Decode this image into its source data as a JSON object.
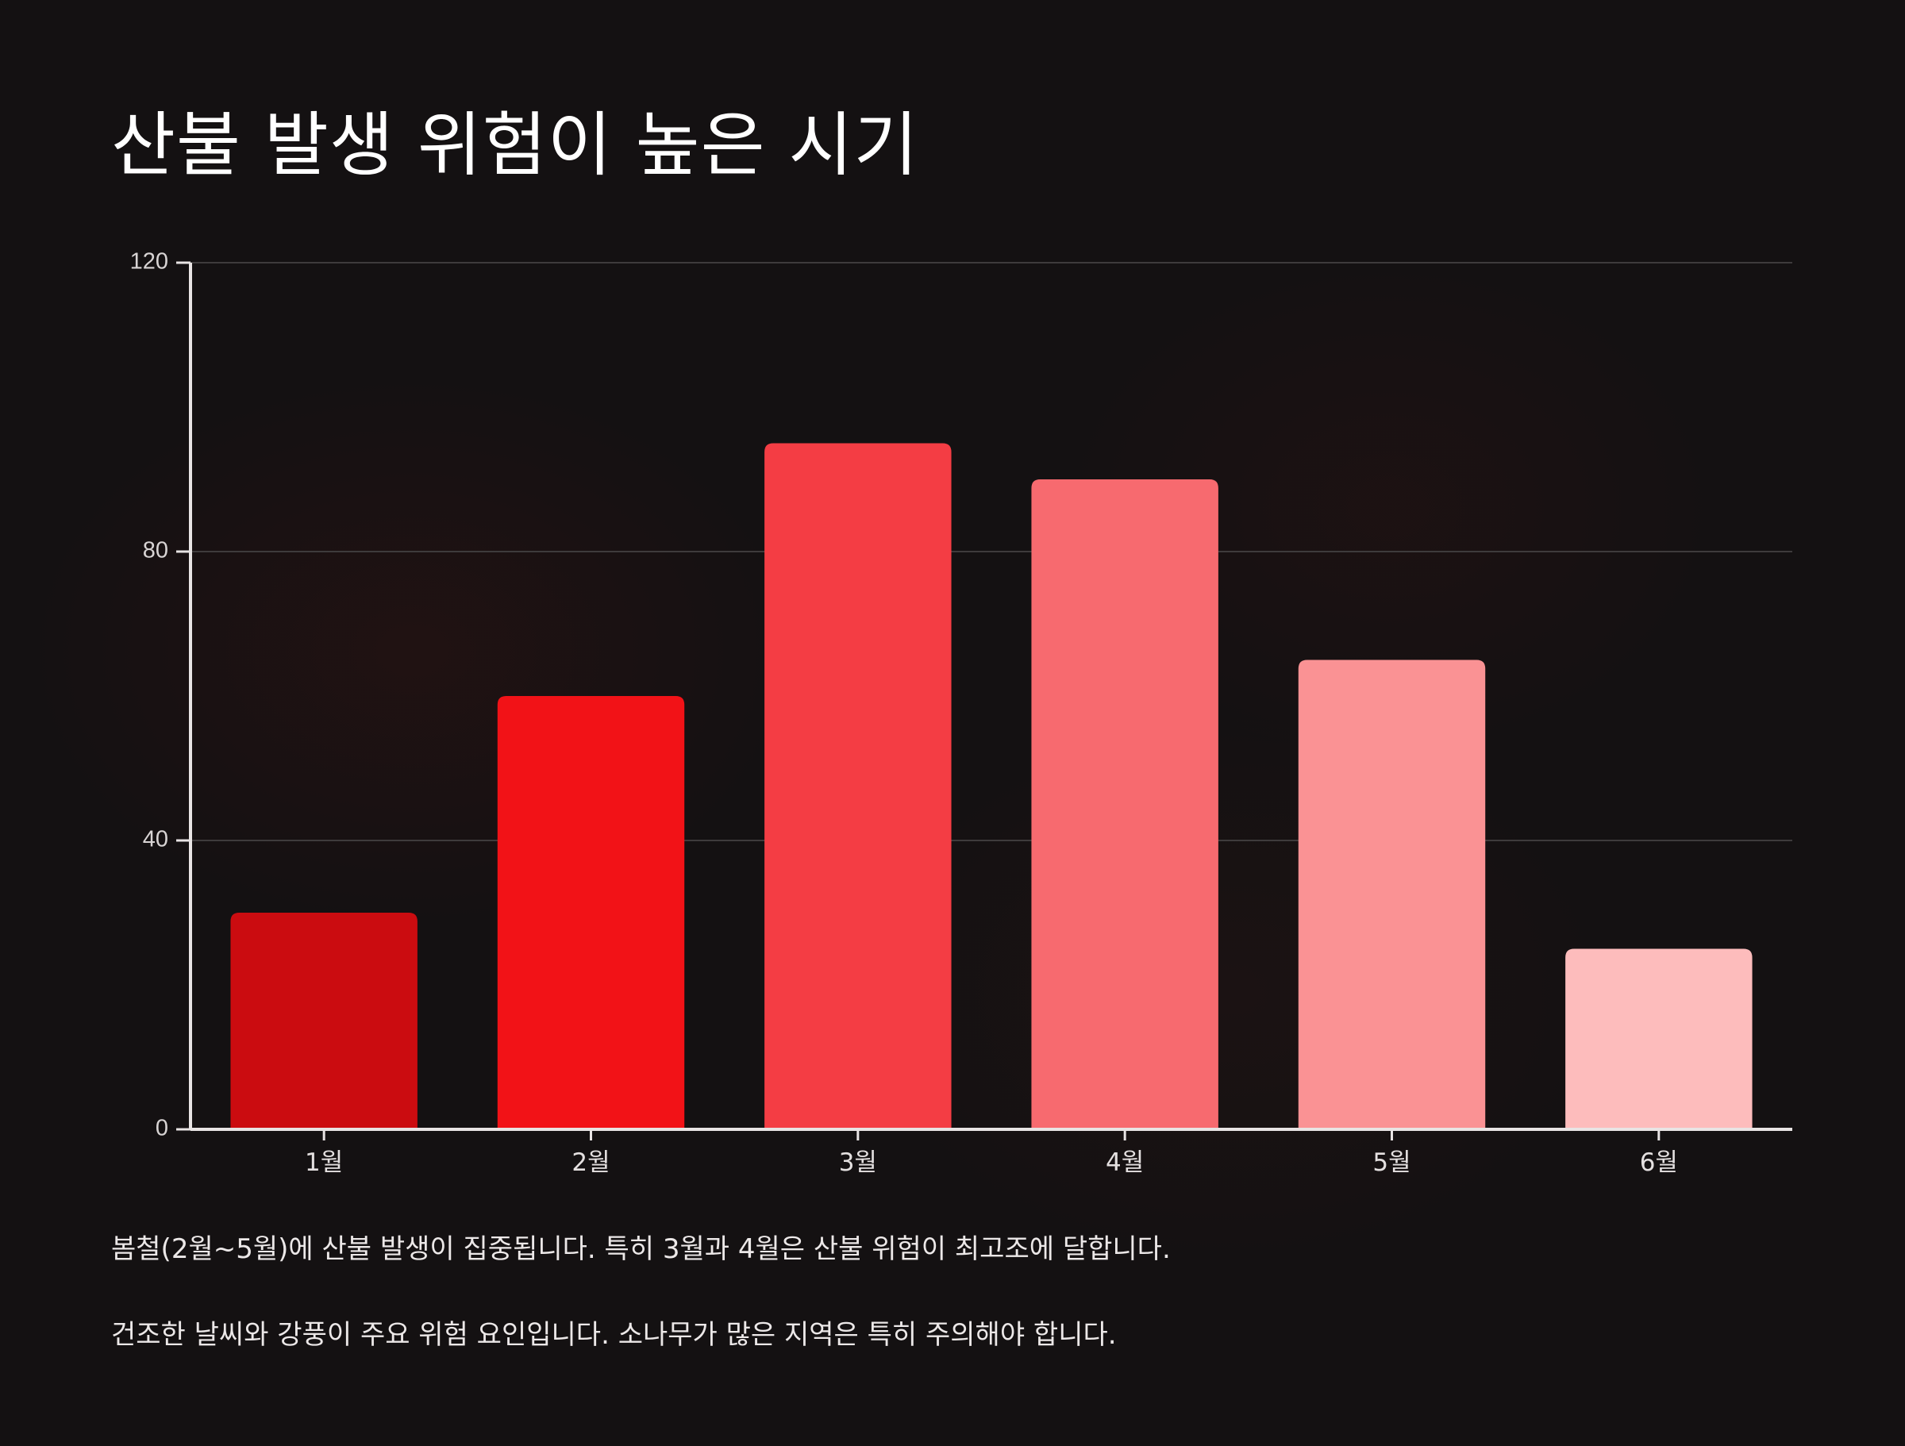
{
  "title": "산불 발생 위험이 높은 시기",
  "chart_data": {
    "type": "bar",
    "categories": [
      "1월",
      "2월",
      "3월",
      "4월",
      "5월",
      "6월"
    ],
    "values": [
      30,
      60,
      95,
      90,
      65,
      25
    ],
    "colors": [
      "#cb0c10",
      "#f21217",
      "#f43d44",
      "#f76a6f",
      "#fa9294",
      "#fdbcbc"
    ],
    "ylim": [
      0,
      120
    ],
    "yticks": [
      0,
      40,
      80,
      120
    ],
    "grid": true,
    "xlabel": "",
    "ylabel": ""
  },
  "notes": [
    "봄철(2월~5월)에 산불 발생이 집중됩니다. 특히 3월과 4월은 산불 위험이 최고조에 달합니다.",
    "건조한 날씨와 강풍이 주요 위험 요인입니다. 소나무가 많은 지역은 특히 주의해야 합니다."
  ]
}
